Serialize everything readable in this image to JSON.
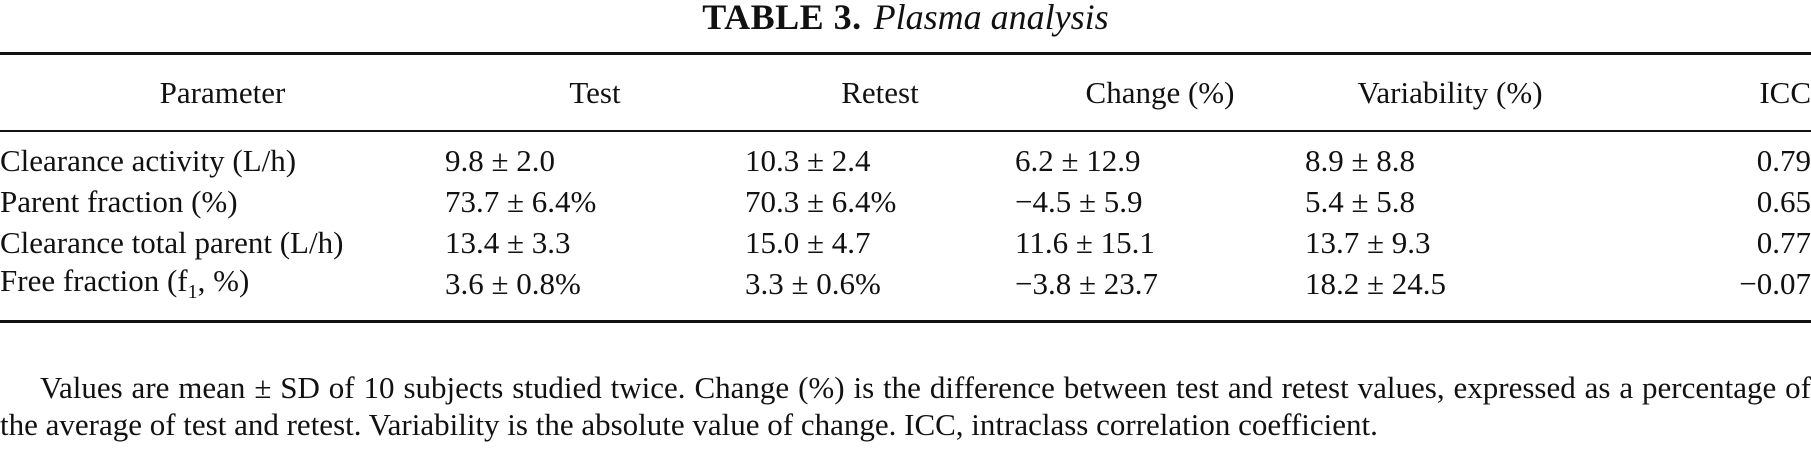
{
  "caption": {
    "label": "TABLE 3.",
    "title": "Plasma analysis"
  },
  "table": {
    "headers": [
      "Parameter",
      "Test",
      "Retest",
      "Change (%)",
      "Variability (%)",
      "ICC"
    ],
    "rows": [
      {
        "parameter": "Clearance activity (L/h)",
        "test": "9.8 ± 2.0",
        "retest": "10.3 ± 2.4",
        "change": "6.2 ± 12.9",
        "variability": "8.9 ± 8.8",
        "icc": "0.79"
      },
      {
        "parameter": "Parent fraction (%)",
        "test": "73.7 ± 6.4%",
        "retest": "70.3 ± 6.4%",
        "change": "−4.5 ± 5.9",
        "variability": "5.4 ± 5.8",
        "icc": "0.65"
      },
      {
        "parameter": "Clearance total parent (L/h)",
        "test": "13.4 ± 3.3",
        "retest": "15.0 ± 4.7",
        "change": "11.6 ± 15.1",
        "variability": "13.7 ± 9.3",
        "icc": "0.77"
      },
      {
        "parameter_main": "Free fraction (f",
        "parameter_sub": "1",
        "parameter_tail": ", %)",
        "test": "3.6 ± 0.8%",
        "retest": "3.3 ± 0.6%",
        "change": "−3.8 ± 23.7",
        "variability": "18.2 ± 24.5",
        "icc": "−0.07"
      }
    ]
  },
  "footnote": "Values are mean ± SD of 10 subjects studied twice. Change (%) is the difference between test and retest values, expressed as a percentage of the average of test and retest. Variability is the absolute value of change. ICC, intraclass correlation coefficient."
}
